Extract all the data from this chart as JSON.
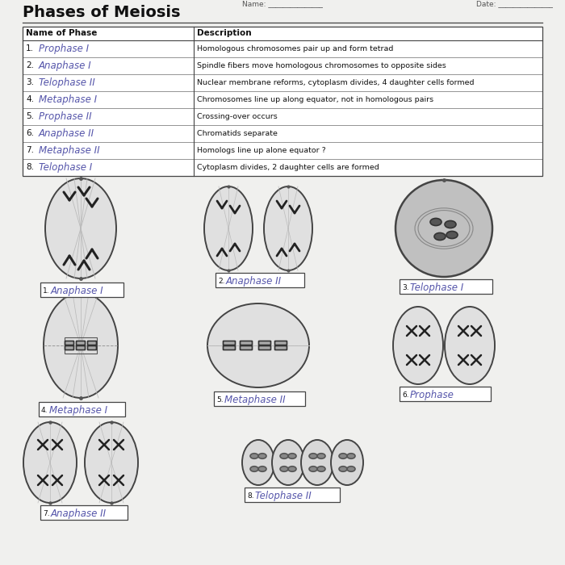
{
  "title": "Phases of Meiosis",
  "name_label": "Name: _______________",
  "date_label": "Date: _______________",
  "table_headers": [
    "Name of Phase",
    "Description"
  ],
  "table_rows": [
    {
      "num": "1.",
      "name": "Prophase I",
      "desc": "Homologous chromosomes pair up and form tetrad"
    },
    {
      "num": "2.",
      "name": "Anaphase I",
      "desc": "Spindle fibers move homologous chromosomes to opposite sides"
    },
    {
      "num": "3.",
      "name": "Telophase II",
      "desc": "Nuclear membrane reforms, cytoplasm divides, 4 daughter cells formed"
    },
    {
      "num": "4.",
      "name": "Metaphase I",
      "desc": "Chromosomes line up along equator, not in homologous pairs"
    },
    {
      "num": "5.",
      "name": "Prophase II",
      "desc": "Crossing-over occurs"
    },
    {
      "num": "6.",
      "name": "Anaphase II",
      "desc": "Chromatids separate"
    },
    {
      "num": "7.",
      "name": "Metaphase II",
      "desc": "Homologs line up alone equator ?"
    },
    {
      "num": "8.",
      "name": "Telophase I",
      "desc": "Cytoplasm divides, 2 daughter cells are formed"
    }
  ],
  "diagram_labels": [
    {
      "num": "1.",
      "name": "Anaphase I"
    },
    {
      "num": "2.",
      "name": "Anaphase II"
    },
    {
      "num": "3.",
      "name": "Telophase I"
    },
    {
      "num": "4.",
      "name": "Metaphase I"
    },
    {
      "num": "5.",
      "name": "Metaphase II"
    },
    {
      "num": "6.",
      "name": "Prophase"
    },
    {
      "num": "7.",
      "name": "Anaphase II"
    },
    {
      "num": "8.",
      "name": "Telophase II"
    }
  ],
  "bg_color": "#f0f0ee",
  "table_bg": "#ffffff",
  "handwritten_color": "#5555aa",
  "text_color": "#111111",
  "line_color": "#444444"
}
